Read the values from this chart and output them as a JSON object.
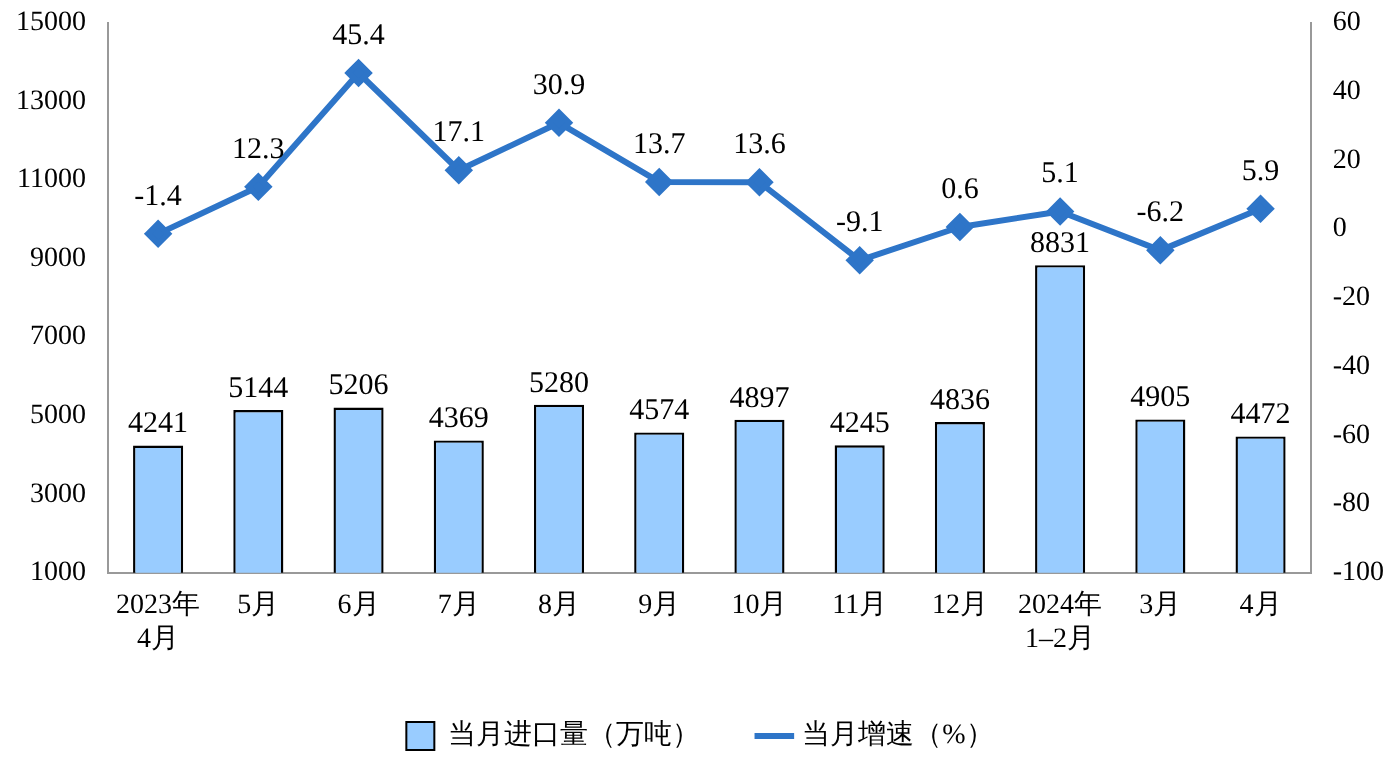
{
  "chart_data": {
    "type": "bar",
    "categories": [
      "2023年\n4月",
      "5月",
      "6月",
      "7月",
      "8月",
      "9月",
      "10月",
      "11月",
      "12月",
      "2024年\n1–2月",
      "3月",
      "4月"
    ],
    "series": [
      {
        "name": "当月进口量（万吨）",
        "color": "#99ccff",
        "values": [
          4241,
          5144,
          5206,
          4369,
          5280,
          4574,
          4897,
          4245,
          4836,
          8831,
          4905,
          4472
        ]
      },
      {
        "name": "当月增速（%）",
        "type": "line",
        "axis": "y2",
        "color": "#2e75c8",
        "values": [
          -1.4,
          12.3,
          45.4,
          17.1,
          30.9,
          13.7,
          13.6,
          -9.1,
          0.6,
          5.1,
          -6.2,
          5.9
        ]
      }
    ],
    "ylim": [
      1000,
      15000
    ],
    "yticks": [
      1000,
      3000,
      5000,
      7000,
      9000,
      11000,
      13000,
      15000
    ],
    "y2lim": [
      -100,
      60
    ],
    "y2ticks": [
      -100,
      -80,
      -60,
      -40,
      -20,
      0,
      20,
      40,
      60
    ],
    "grid": false,
    "legend": "bottom",
    "marker": "diamond",
    "line_style": "solid",
    "data_labels": true
  }
}
